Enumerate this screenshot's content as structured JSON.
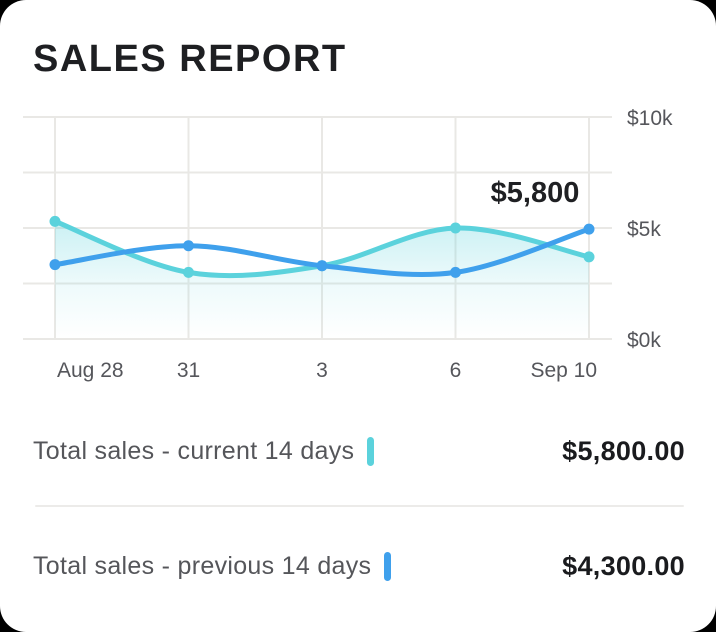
{
  "card": {
    "title": "SALES REPORT"
  },
  "chart_data": {
    "type": "line",
    "title": "",
    "categories": [
      "Aug 28",
      "31",
      "3",
      "6",
      "Sep 10"
    ],
    "series": [
      {
        "name": "Total sales - current 14 days",
        "color": "#5BD2DC",
        "area": true,
        "values": [
          5300,
          3000,
          3300,
          5000,
          3700
        ]
      },
      {
        "name": "Total sales - previous 14 days",
        "color": "#3FA0EC",
        "area": false,
        "values": [
          3350,
          4200,
          3300,
          3000,
          4950
        ]
      }
    ],
    "annotation": "$5,800",
    "y_axis": {
      "ticks": [
        {
          "label": "$10k",
          "value": 10000
        },
        {
          "label": "$5k",
          "value": 5000
        },
        {
          "label": "$0k",
          "value": 0
        }
      ],
      "gridline_values": [
        10000,
        7500,
        5000,
        2500,
        0
      ],
      "ylim": [
        0,
        10000
      ],
      "position": "right"
    },
    "xlabel": "",
    "ylabel": "",
    "grid": true,
    "legend_position": "none"
  },
  "summary_rows": [
    {
      "label": "Total sales - current 14 days",
      "value": "$5,800.00",
      "color": "#5BD2DC"
    },
    {
      "label": "Total sales - previous 14 days",
      "value": "$4,300.00",
      "color": "#3FA0EC"
    }
  ],
  "theme": {
    "card_bg": "#FFFFFF",
    "outside_bg": "#000000",
    "title_color": "#1E1F22",
    "grid_color": "#E9E8E5",
    "axis_text_color": "#55565B",
    "annotation_color": "#1F2023",
    "label_gray": "#55565A",
    "value_dark": "#1A1B1E",
    "divider_color": "#ECEBE9"
  }
}
